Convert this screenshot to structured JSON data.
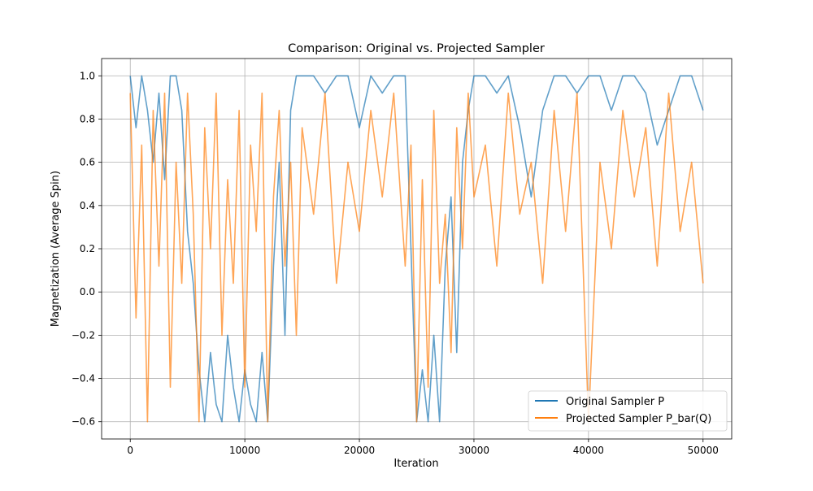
{
  "chart_data": {
    "type": "line",
    "title": "Comparison: Original vs. Projected Sampler",
    "xlabel": "Iteration",
    "ylabel": "Magnetization (Average Spin)",
    "xlim": [
      -2500,
      52500
    ],
    "ylim": [
      -0.68,
      1.08
    ],
    "xticks": [
      0,
      10000,
      20000,
      30000,
      40000,
      50000
    ],
    "xtick_labels": [
      "0",
      "10000",
      "20000",
      "30000",
      "40000",
      "50000"
    ],
    "yticks": [
      -0.6,
      -0.4,
      -0.2,
      0.0,
      0.2,
      0.4,
      0.6,
      0.8,
      1.0
    ],
    "ytick_labels": [
      "−0.6",
      "−0.4",
      "−0.2",
      "0.0",
      "0.2",
      "0.4",
      "0.6",
      "0.8",
      "1.0"
    ],
    "grid": true,
    "legend_position": "lower-right",
    "series": [
      {
        "name": "Original Sampler P",
        "color": "#1f77b4",
        "x": [
          0,
          500,
          1000,
          1500,
          2000,
          2500,
          3000,
          3500,
          4000,
          4500,
          5000,
          5500,
          6000,
          6500,
          7000,
          7500,
          8000,
          8500,
          9000,
          9500,
          10000,
          10500,
          11000,
          11500,
          12000,
          12500,
          13000,
          13500,
          14000,
          14500,
          15000,
          16000,
          17000,
          18000,
          19000,
          20000,
          21000,
          22000,
          23000,
          24000,
          24500,
          25000,
          25500,
          26000,
          26500,
          27000,
          27500,
          28000,
          28500,
          29000,
          29500,
          30000,
          31000,
          32000,
          33000,
          34000,
          35000,
          36000,
          37000,
          38000,
          39000,
          40000,
          41000,
          42000,
          43000,
          44000,
          45000,
          46000,
          47000,
          48000,
          49000,
          50000
        ],
        "values": [
          1.0,
          0.76,
          1.0,
          0.84,
          0.6,
          0.92,
          0.52,
          1.0,
          1.0,
          0.84,
          0.28,
          0.04,
          -0.36,
          -0.6,
          -0.28,
          -0.52,
          -0.6,
          -0.2,
          -0.44,
          -0.6,
          -0.36,
          -0.52,
          -0.6,
          -0.28,
          -0.6,
          0.12,
          0.6,
          -0.2,
          0.84,
          1.0,
          1.0,
          1.0,
          0.92,
          1.0,
          1.0,
          0.76,
          1.0,
          0.92,
          1.0,
          1.0,
          0.2,
          -0.6,
          -0.36,
          -0.6,
          -0.2,
          -0.6,
          0.12,
          0.44,
          -0.28,
          0.6,
          0.84,
          1.0,
          1.0,
          0.92,
          1.0,
          0.76,
          0.44,
          0.84,
          1.0,
          1.0,
          0.92,
          1.0,
          1.0,
          0.84,
          1.0,
          1.0,
          0.92,
          0.68,
          0.84,
          1.0,
          1.0,
          0.84
        ]
      },
      {
        "name": "Projected Sampler P_bar(Q)",
        "color": "#ff7f0e",
        "x": [
          0,
          500,
          1000,
          1500,
          2000,
          2500,
          3000,
          3500,
          4000,
          4500,
          5000,
          5500,
          6000,
          6500,
          7000,
          7500,
          8000,
          8500,
          9000,
          9500,
          10000,
          10500,
          11000,
          11500,
          12000,
          12500,
          13000,
          13500,
          14000,
          14500,
          15000,
          16000,
          17000,
          18000,
          19000,
          20000,
          21000,
          22000,
          23000,
          24000,
          24500,
          25000,
          25500,
          26000,
          26500,
          27000,
          27500,
          28000,
          28500,
          29000,
          29500,
          30000,
          31000,
          32000,
          33000,
          34000,
          35000,
          36000,
          37000,
          38000,
          39000,
          40000,
          41000,
          42000,
          43000,
          44000,
          45000,
          46000,
          47000,
          48000,
          49000,
          50000
        ],
        "values": [
          0.92,
          -0.12,
          0.68,
          -0.6,
          0.84,
          0.12,
          0.92,
          -0.44,
          0.6,
          0.04,
          0.92,
          0.36,
          -0.6,
          0.76,
          0.2,
          0.92,
          -0.2,
          0.52,
          0.04,
          0.84,
          -0.44,
          0.68,
          0.28,
          0.92,
          -0.6,
          0.44,
          0.84,
          0.12,
          0.6,
          -0.2,
          0.76,
          0.36,
          0.92,
          0.04,
          0.6,
          0.28,
          0.84,
          0.44,
          0.92,
          0.12,
          0.68,
          -0.6,
          0.52,
          -0.44,
          0.84,
          0.04,
          0.36,
          -0.28,
          0.76,
          0.2,
          0.92,
          0.44,
          0.68,
          0.12,
          0.92,
          0.36,
          0.6,
          0.04,
          0.84,
          0.28,
          0.92,
          -0.6,
          0.6,
          0.2,
          0.84,
          0.44,
          0.76,
          0.12,
          0.92,
          0.28,
          0.6,
          0.04
        ]
      }
    ]
  }
}
